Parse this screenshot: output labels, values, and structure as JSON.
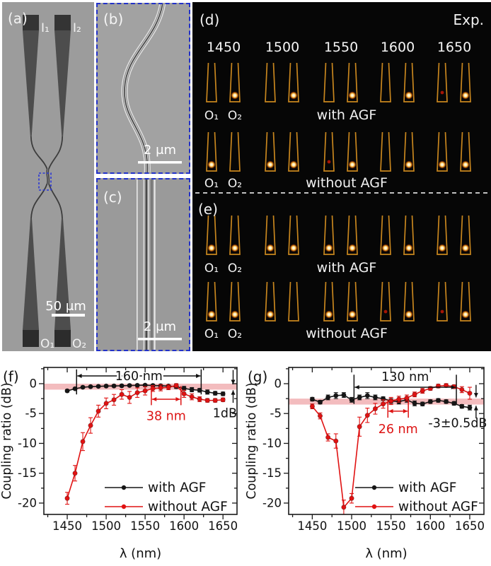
{
  "panel_a": {
    "label": "(a)",
    "input_labels": [
      "I₁",
      "I₂"
    ],
    "output_labels": [
      "O₁",
      "O₂"
    ],
    "scalebar": "50 μm"
  },
  "panel_b": {
    "label": "(b)",
    "scalebar": "2 μm"
  },
  "panel_c": {
    "label": "(c)",
    "scalebar": "2 μm"
  },
  "panel_de": {
    "label_d": "(d)",
    "label_e": "(e)",
    "exp_label": "Exp.",
    "wavelengths": [
      "1450",
      "1500",
      "1550",
      "1600",
      "1650"
    ],
    "port_labels": [
      "O₁",
      "O₂"
    ],
    "outline_color": "#c8861e",
    "faint_spot_color": "#a51505",
    "rows": [
      {
        "panel": "d",
        "caption": "with AGF",
        "spots": [
          [
            "none",
            "bright"
          ],
          [
            "none",
            "bright"
          ],
          [
            "none",
            "bright"
          ],
          [
            "none",
            "bright"
          ],
          [
            "faint",
            "bright"
          ]
        ]
      },
      {
        "panel": "d",
        "caption": "without AGF",
        "spots": [
          [
            "bright",
            "none"
          ],
          [
            "bright",
            "bright"
          ],
          [
            "faint",
            "bright"
          ],
          [
            "none",
            "bright"
          ],
          [
            "bright",
            "bright"
          ]
        ]
      },
      {
        "panel": "e",
        "caption": "with AGF",
        "spots": [
          [
            "bright",
            "bright"
          ],
          [
            "bright",
            "bright"
          ],
          [
            "bright",
            "bright"
          ],
          [
            "bright",
            "bright"
          ],
          [
            "bright",
            "bright"
          ]
        ]
      },
      {
        "panel": "e",
        "caption": "without AGF",
        "spots": [
          [
            "bright",
            "bright"
          ],
          [
            "bright",
            "none"
          ],
          [
            "bright",
            "bright"
          ],
          [
            "faint",
            "bright"
          ],
          [
            "faint",
            "bright"
          ]
        ]
      }
    ]
  },
  "chart_data": [
    {
      "id": "f",
      "type": "line",
      "panel_label": "(f)",
      "xlabel": "λ (nm)",
      "ylabel": "Coupling ratio (dB)",
      "xlim": [
        1420,
        1668
      ],
      "ylim": [
        -21.9,
        2.72
      ],
      "xticks": [
        1450,
        1500,
        1550,
        1600,
        1650
      ],
      "yticks": [
        0,
        -5,
        -10,
        -15,
        -20
      ],
      "xminor": [
        1425,
        1475,
        1525,
        1575,
        1625
      ],
      "yminor": [
        2.5,
        -2.5,
        -7.5,
        -12.5,
        -17.5
      ],
      "grid": false,
      "legend_position": "lower right",
      "x": [
        1450,
        1460,
        1470,
        1480,
        1490,
        1500,
        1510,
        1520,
        1530,
        1540,
        1550,
        1560,
        1570,
        1580,
        1590,
        1600,
        1610,
        1620,
        1630,
        1640,
        1650
      ],
      "series": [
        {
          "name": "with AGF",
          "color": "#161616",
          "values": [
            -1.2,
            -0.85,
            -0.6,
            -0.5,
            -0.45,
            -0.4,
            -0.38,
            -0.35,
            -0.3,
            -0.28,
            -0.25,
            -0.3,
            -0.35,
            -0.4,
            -0.5,
            -0.8,
            -1.0,
            -1.1,
            -1.4,
            -1.6,
            -1.7
          ],
          "err": [
            0.2,
            0.15,
            0.15,
            0.15,
            0.15,
            0.15,
            0.15,
            0.15,
            0.15,
            0.15,
            0.15,
            0.15,
            0.2,
            0.2,
            0.3,
            0.35,
            0.35,
            0.3,
            0.35,
            0.3,
            0.3
          ]
        },
        {
          "name": "without AGF",
          "color": "#e01212",
          "values": [
            -19.2,
            -15.0,
            -9.7,
            -7.0,
            -4.6,
            -3.3,
            -2.7,
            -1.8,
            -2.3,
            -1.5,
            -1.2,
            -0.8,
            -0.7,
            -0.6,
            -0.3,
            -1.7,
            -2.2,
            -2.6,
            -2.8,
            -2.8,
            -2.7
          ],
          "err": [
            1.0,
            1.3,
            1.5,
            1.3,
            1.0,
            0.9,
            0.9,
            0.8,
            1.0,
            0.8,
            0.7,
            0.5,
            0.5,
            0.4,
            0.3,
            0.6,
            0.5,
            0.4,
            0.3,
            0.3,
            0.3
          ]
        }
      ],
      "annotations": [
        {
          "type": "band",
          "y1": 0,
          "y2": -1,
          "color": "#f3bcbe"
        },
        {
          "type": "span",
          "x1": 1462,
          "x2": 1622,
          "y": 1.3,
          "bar_top": 2.4,
          "bar_bottom": -1.8,
          "label": "160 nm",
          "label_x": 1542,
          "label_y": 1.3,
          "color": "#111111"
        },
        {
          "type": "span",
          "x1": 1558,
          "x2": 1596,
          "y": -2.6,
          "bar_top": -0.4,
          "bar_bottom": -3.6,
          "label": "38 nm",
          "label_x": 1577,
          "label_y": -5.4,
          "color": "#dd1414"
        },
        {
          "type": "dbmark",
          "x": 1663,
          "top_from": 2.3,
          "top_to": -0.1,
          "bot_from": -3.2,
          "bot_to": -1.1,
          "label": "1dB",
          "label_x": 1668,
          "label_y": -4.9,
          "color": "#111111"
        }
      ]
    },
    {
      "id": "g",
      "type": "line",
      "panel_label": "(g)",
      "xlabel": "λ (nm)",
      "ylabel": "Coupling ratio (dB)",
      "xlim": [
        1420,
        1668
      ],
      "ylim": [
        -21.9,
        2.72
      ],
      "xticks": [
        1450,
        1500,
        1550,
        1600,
        1650
      ],
      "yticks": [
        0,
        -5,
        -10,
        -15,
        -20
      ],
      "xminor": [
        1425,
        1475,
        1525,
        1575,
        1625
      ],
      "yminor": [
        2.5,
        -2.5,
        -7.5,
        -12.5,
        -17.5
      ],
      "grid": false,
      "legend_position": "lower right",
      "x": [
        1450,
        1460,
        1470,
        1480,
        1490,
        1500,
        1510,
        1520,
        1530,
        1540,
        1550,
        1560,
        1570,
        1580,
        1590,
        1600,
        1610,
        1620,
        1630,
        1640,
        1650
      ],
      "series": [
        {
          "name": "with AGF",
          "color": "#161616",
          "values": [
            -2.6,
            -3.1,
            -2.3,
            -2.0,
            -1.9,
            -2.7,
            -2.3,
            -2.0,
            -2.3,
            -2.5,
            -2.9,
            -3.0,
            -2.7,
            -3.3,
            -3.4,
            -3.0,
            -2.8,
            -3.0,
            -3.3,
            -3.8,
            -4.0
          ],
          "err": [
            0.3,
            0.3,
            0.4,
            0.5,
            0.4,
            0.4,
            0.4,
            0.5,
            0.4,
            0.3,
            0.4,
            0.4,
            0.4,
            0.4,
            0.3,
            0.3,
            0.3,
            0.3,
            0.3,
            0.3,
            0.4
          ]
        },
        {
          "name": "without AGF",
          "color": "#e01212",
          "values": [
            -3.8,
            -5.4,
            -9.0,
            -9.6,
            -20.7,
            -19.2,
            -7.2,
            -5.3,
            -4.2,
            -3.4,
            -2.9,
            -2.6,
            -2.4,
            -1.8,
            -1.2,
            -0.8,
            -0.4,
            -0.3,
            -0.5,
            -1.0,
            -1.6
          ],
          "err": [
            0.4,
            0.5,
            0.6,
            1.2,
            1.2,
            0.8,
            1.6,
            1.2,
            0.9,
            0.7,
            0.6,
            0.5,
            0.5,
            0.4,
            0.4,
            0.3,
            0.3,
            0.3,
            0.3,
            0.5,
            1.0
          ]
        }
      ],
      "annotations": [
        {
          "type": "band",
          "y1": -2.5,
          "y2": -3.5,
          "color": "#f3bcbe"
        },
        {
          "type": "span",
          "x1": 1503,
          "x2": 1633,
          "y": -0.6,
          "bar_top": 1.5,
          "bar_bottom": -3.4,
          "label": "130 nm",
          "label_x": 1568,
          "label_y": 1.2,
          "color": "#111111"
        },
        {
          "type": "span",
          "x1": 1546,
          "x2": 1572,
          "y": -4.6,
          "bar_top": -2.7,
          "bar_bottom": -5.7,
          "label": "26 nm",
          "label_x": 1559,
          "label_y": -7.6,
          "color": "#dd1414"
        },
        {
          "type": "dbmark",
          "x": 1658,
          "top_from": -0.2,
          "top_to": -2.3,
          "bot_from": -5.8,
          "bot_to": -3.7,
          "label": "-3±0.5dB",
          "label_x": 1672,
          "label_y": -6.6,
          "color": "#111111"
        }
      ]
    }
  ]
}
